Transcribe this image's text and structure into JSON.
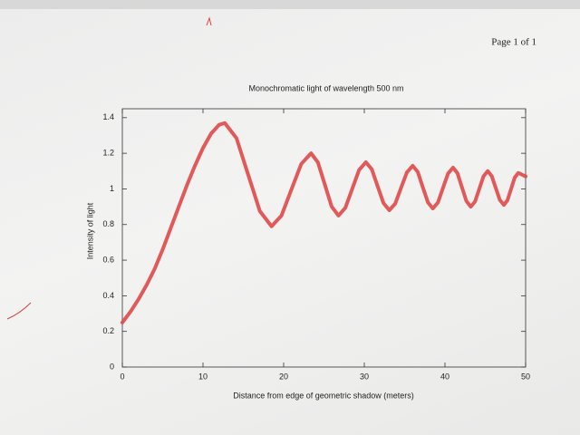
{
  "page_header": "Page 1 of 1",
  "chart_data": {
    "type": "line",
    "title": "Monochromatic light of wavelength 500 nm",
    "x_label": "Distance from edge of geometric shadow (meters)",
    "y_label": "Intensity of light",
    "color": "#e04848",
    "x": [
      0,
      1,
      2,
      3,
      4,
      5,
      6,
      7,
      8,
      9,
      10,
      11,
      12,
      12.7,
      14.15,
      15.6,
      17.05,
      18.5,
      19.73,
      20.95,
      22.18,
      23.4,
      24.25,
      25.1,
      25.95,
      26.8,
      27.65,
      28.5,
      29.35,
      30.2,
      30.93,
      31.65,
      32.38,
      33.1,
      33.83,
      34.55,
      35.28,
      36.0,
      36.63,
      37.25,
      37.88,
      38.5,
      39.13,
      39.75,
      40.38,
      41.0,
      41.55,
      42.1,
      42.65,
      43.2,
      43.73,
      44.25,
      44.78,
      45.3,
      45.8,
      46.3,
      46.8,
      47.3,
      47.75,
      48.2,
      48.65,
      49.1,
      50
    ],
    "values": [
      0.25,
      0.31,
      0.38,
      0.46,
      0.55,
      0.66,
      0.78,
      0.9,
      1.02,
      1.13,
      1.23,
      1.31,
      1.36,
      1.37,
      1.285,
      1.08,
      0.875,
      0.79,
      0.85,
      0.995,
      1.14,
      1.2,
      1.149,
      1.025,
      0.901,
      0.85,
      0.894,
      1.0,
      1.106,
      1.15,
      1.11,
      1.015,
      0.92,
      0.88,
      0.917,
      1.005,
      1.093,
      1.13,
      1.095,
      1.01,
      0.925,
      0.89,
      0.924,
      1.005,
      1.086,
      1.12,
      1.088,
      1.01,
      0.932,
      0.9,
      0.929,
      1.0,
      1.071,
      1.1,
      1.072,
      1.005,
      0.938,
      0.91,
      0.936,
      1.0,
      1.064,
      1.09,
      1.07
    ],
    "xlim": [
      0,
      50
    ],
    "xticks": [
      0,
      10,
      20,
      30,
      40,
      50
    ],
    "ylim": [
      0,
      1.45
    ],
    "yticks": [
      0,
      0.2,
      0.4,
      0.6,
      0.8,
      1,
      1.2,
      1.4
    ],
    "grid": false
  }
}
